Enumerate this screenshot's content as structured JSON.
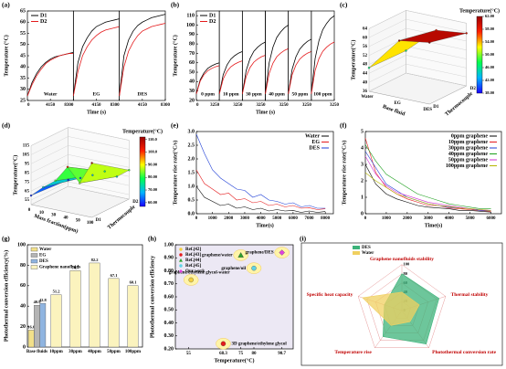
{
  "chart_data": [
    {
      "type": "line-panels",
      "label": "(a)",
      "xlabel": "Time (s)",
      "ylabel": "Temperature (°C)",
      "panels": [
        "Water",
        "EG",
        "DES"
      ],
      "x": [
        0,
        830,
        1660,
        2490,
        3320,
        4150,
        4980,
        5810,
        6640,
        7470,
        8300
      ],
      "xlim": [
        0,
        8300
      ],
      "xticks": [
        0,
        4150,
        8300
      ],
      "ylim": [
        25,
        65
      ],
      "yticks": [
        25,
        30,
        35,
        40,
        45,
        50,
        55,
        60,
        65
      ],
      "legend": "upper left",
      "series": [
        {
          "name": "D1",
          "color": "#000000",
          "values": [
            [
              27,
              33,
              37,
              40,
              42,
              43.5,
              44.5,
              45,
              45.5,
              46,
              46.5
            ],
            [
              27,
              42,
              49,
              53,
              56,
              58,
              59,
              60,
              60.5,
              61,
              61.5
            ],
            [
              27,
              45,
              52,
              56,
              58.5,
              60,
              61,
              62,
              62.5,
              63,
              63.5
            ]
          ]
        },
        {
          "name": "D2",
          "color": "#e41a1c",
          "values": [
            [
              27,
              32,
              36,
              39,
              41.5,
              43,
              44,
              45,
              45.5,
              46,
              46
            ],
            [
              27,
              38,
              45,
              49,
              52,
              54,
              55.5,
              56.5,
              57,
              57.5,
              58
            ],
            [
              27,
              40,
              47,
              51,
              54,
              56,
              57,
              58,
              58.5,
              59,
              59.5
            ]
          ]
        }
      ]
    },
    {
      "type": "line-panels",
      "label": "(b)",
      "xlabel": "Time (s)",
      "ylabel": "Temperature (°C)",
      "panels": [
        "0 ppm",
        "10 ppm",
        "30 ppm",
        "40 ppm",
        "50 ppm",
        "100 ppm"
      ],
      "x": [
        0,
        540,
        1080,
        1620,
        2160,
        2700,
        3250
      ],
      "xlim": [
        0,
        3250
      ],
      "xticks": [
        0,
        3250
      ],
      "ylim": [
        20,
        115
      ],
      "yticks": [
        20,
        30,
        40,
        50,
        60,
        70,
        80,
        90,
        100,
        110
      ],
      "legend": "upper left",
      "series": [
        {
          "name": "D1",
          "color": "#000000",
          "values": [
            [
              27,
              41.9,
              49.4,
              54.1,
              56.7,
              58.7,
              60
            ],
            [
              27,
              47.3,
              57.6,
              63.9,
              67.5,
              70.2,
              72
            ],
            [
              27,
              51.8,
              64.4,
              72.1,
              76.5,
              79.8,
              82
            ],
            [
              27,
              59.9,
              76.6,
              86.9,
              92.7,
              97.1,
              100
            ],
            [
              27,
              53.1,
              66.4,
              74.6,
              79.2,
              82.7,
              85
            ],
            [
              27,
              64.4,
              83.4,
              95.1,
              101.7,
              106.7,
              110
            ]
          ]
        },
        {
          "name": "D2",
          "color": "#e41a1c",
          "values": [
            [
              27,
              40.5,
              47.4,
              51.6,
              54,
              55.8,
              57
            ],
            [
              27,
              42.8,
              50.8,
              55.7,
              58.5,
              60.6,
              62
            ],
            [
              27,
              45.5,
              54.9,
              60.6,
              63.9,
              66.4,
              68
            ],
            [
              27,
              48.6,
              59.6,
              66.4,
              70.2,
              73.1,
              75
            ],
            [
              27,
              47.3,
              57.6,
              63.9,
              67.5,
              70.2,
              72
            ],
            [
              27,
              51.8,
              64.4,
              72.1,
              76.5,
              79.8,
              82
            ]
          ]
        }
      ]
    },
    {
      "type": "surface3d",
      "label": "(c)",
      "zlabel": "Temperature(°C)",
      "xlabel": "Base fluid",
      "ylabel": "Thermocouple",
      "x_categories": [
        "Water",
        "EG",
        "DES"
      ],
      "y_categories": [
        "D1",
        "D2"
      ],
      "values": [
        [
          46.5,
          46
        ],
        [
          61.5,
          58
        ],
        [
          63.5,
          59.5
        ]
      ],
      "zlim": [
        36,
        64
      ],
      "zticks": [
        36,
        40,
        44,
        48,
        52,
        56,
        60,
        64
      ],
      "colorbar_title": "Temperature(°C)",
      "clim": [
        38,
        62
      ],
      "cticks": [
        {
          "value": 38,
          "label": "38.00"
        },
        {
          "value": 42,
          "label": "42.00"
        },
        {
          "value": 46,
          "label": "46.00"
        },
        {
          "value": 50,
          "label": "50.00"
        },
        {
          "value": 54,
          "label": "54.00"
        },
        {
          "value": 58,
          "label": "58.00"
        },
        {
          "value": 62,
          "label": "62.00"
        }
      ],
      "colormap": [
        "#1a00ff",
        "#00b4ff",
        "#00ff50",
        "#ffff00",
        "#ff2000",
        "#9b0000"
      ]
    },
    {
      "type": "surface3d",
      "label": "(d)",
      "zlabel": "Temperature(°C)",
      "xlabel": "Mass fraction(ppm)",
      "ylabel": "Thermocouple",
      "x_categories": [
        "0",
        "10",
        "30",
        "40",
        "50",
        "100"
      ],
      "y_categories": [
        "D1",
        "D2"
      ],
      "values": [
        [
          60,
          57
        ],
        [
          72,
          62
        ],
        [
          82,
          68
        ],
        [
          100,
          75
        ],
        [
          85,
          72
        ],
        [
          110,
          82
        ]
      ],
      "zlim": [
        50,
        115
      ],
      "zticks": [
        55,
        65,
        75,
        85,
        95,
        105,
        115
      ],
      "colorbar_title": "Temperature(°C)",
      "clim": [
        57,
        112
      ],
      "cticks": [
        {
          "value": 60,
          "label": "60.00"
        },
        {
          "value": 70,
          "label": "70.00"
        },
        {
          "value": 80,
          "label": "80.00"
        },
        {
          "value": 90,
          "label": "90.00"
        },
        {
          "value": 100,
          "label": "100.0"
        },
        {
          "value": 110,
          "label": "110.0"
        }
      ],
      "colormap": [
        "#1a00ff",
        "#00b4ff",
        "#00ff50",
        "#ffff00",
        "#ff2000",
        "#9b0000"
      ]
    },
    {
      "type": "line",
      "label": "(e)",
      "xlabel": "Time(s)",
      "ylabel": "Temperature rise rate(°C/s)",
      "x": [
        0,
        500,
        1000,
        1500,
        2000,
        2500,
        3000,
        3500,
        4000,
        4500,
        5000,
        5500,
        6000,
        6500,
        7000,
        7500,
        8000
      ],
      "xlim": [
        0,
        8500
      ],
      "xticks": [
        0,
        1000,
        2000,
        3000,
        4000,
        5000,
        6000,
        7000,
        8000
      ],
      "ylim": [
        0,
        3
      ],
      "yticks": [
        {
          "value": 0,
          "label": "0.0"
        },
        {
          "value": 0.5,
          "label": "0.5"
        },
        {
          "value": 1,
          "label": "1.0"
        },
        {
          "value": 1.5,
          "label": "1.5"
        },
        {
          "value": 2,
          "label": "2.0"
        },
        {
          "value": 2.5,
          "label": "2.5"
        },
        {
          "value": 3,
          "label": "3.0"
        }
      ],
      "legend": "upper right",
      "series": [
        {
          "name": "Water",
          "color": "#000000",
          "values": [
            1.0,
            0.6,
            0.45,
            0.3,
            0.35,
            0.2,
            0.25,
            0.15,
            0.2,
            0.1,
            0.15,
            0.1,
            0.12,
            0.05,
            0.1,
            0.05,
            0.08
          ]
        },
        {
          "name": "EG",
          "color": "#e41a1c",
          "values": [
            1.6,
            1.1,
            0.9,
            0.7,
            0.75,
            0.5,
            0.55,
            0.4,
            0.45,
            0.3,
            0.35,
            0.25,
            0.3,
            0.2,
            0.22,
            0.15,
            0.18
          ]
        },
        {
          "name": "DES",
          "color": "#1f3fd6",
          "values": [
            2.9,
            2.2,
            1.6,
            1.3,
            1.1,
            0.9,
            0.85,
            0.6,
            0.7,
            0.5,
            0.45,
            0.35,
            0.4,
            0.25,
            0.3,
            0.2,
            0.2
          ]
        }
      ]
    },
    {
      "type": "line",
      "label": "(f)",
      "xlabel": "Time(s)",
      "ylabel": "Temperature rise rate(°C/s)",
      "x": [
        0,
        500,
        1000,
        1500,
        2000,
        2500,
        3000,
        3500,
        4000,
        4500,
        5000,
        5500,
        6000
      ],
      "xlim": [
        0,
        6500
      ],
      "xticks": [
        0,
        1000,
        2000,
        3000,
        4000,
        5000,
        6000
      ],
      "ylim": [
        0,
        5
      ],
      "yticks": [
        0,
        1,
        2,
        3,
        4,
        5
      ],
      "legend": "upper right",
      "series": [
        {
          "name": "0ppm graphene",
          "color": "#000000",
          "values": [
            3.0,
            1.8,
            1.2,
            0.9,
            0.7,
            0.5,
            0.4,
            0.35,
            0.3,
            0.2,
            0.2,
            0.15,
            0.1
          ]
        },
        {
          "name": "10ppm graphene",
          "color": "#e41a1c",
          "values": [
            4.6,
            2.5,
            1.6,
            1.2,
            0.9,
            0.7,
            0.5,
            0.5,
            0.35,
            0.3,
            0.25,
            0.2,
            0.15
          ]
        },
        {
          "name": "30ppm graphene",
          "color": "#1f3fd6",
          "values": [
            3.8,
            2.8,
            1.8,
            1.4,
            1.0,
            0.8,
            0.6,
            0.5,
            0.4,
            0.35,
            0.3,
            0.2,
            0.2
          ]
        },
        {
          "name": "40ppm graphene",
          "color": "#1a9e1a",
          "values": [
            4.2,
            3.2,
            2.4,
            2.0,
            1.6,
            1.2,
            1.0,
            0.8,
            0.6,
            0.5,
            0.4,
            0.3,
            0.3
          ]
        },
        {
          "name": "50ppm graphene",
          "color": "#d12fd1",
          "values": [
            3.5,
            2.4,
            1.7,
            1.3,
            1.1,
            0.9,
            0.7,
            0.6,
            0.5,
            0.4,
            0.3,
            0.25,
            0.2
          ]
        },
        {
          "name": "100ppm graphene",
          "color": "#b5b500",
          "values": [
            2.5,
            2.0,
            1.6,
            1.2,
            1.0,
            0.8,
            0.6,
            0.5,
            0.45,
            0.35,
            0.3,
            0.25,
            0.2
          ]
        }
      ]
    },
    {
      "type": "bar",
      "label": "(g)",
      "ylabel": "Photothermal conversion efficiency(%)",
      "categories": [
        "Base fluids",
        "10ppm",
        "30ppm",
        "40ppm",
        "50ppm",
        "100ppm"
      ],
      "ylim": [
        0,
        100
      ],
      "yticks": [
        0,
        20,
        40,
        60,
        80,
        100
      ],
      "legend": "upper left",
      "series": [
        {
          "name": "Water",
          "color": "#f2e08a",
          "values": [
            16.6,
            null,
            null,
            null,
            null,
            null
          ]
        },
        {
          "name": "EG",
          "color": "#b4b4b4",
          "values": [
            40.9,
            null,
            null,
            null,
            null,
            null
          ]
        },
        {
          "name": "DES",
          "color": "#8fb4e0",
          "values": [
            42.8,
            null,
            null,
            null,
            null,
            null
          ]
        },
        {
          "name": "Graphene nanofluids",
          "color": "#fbf3be",
          "values": [
            null,
            51.2,
            74.7,
            82.2,
            67.1,
            60.1
          ]
        }
      ]
    },
    {
      "type": "scatter",
      "label": "(h)",
      "xlabel": "Temperature(°C)",
      "ylabel": "Photothermal conversion efficiency",
      "xlim": [
        50,
        95
      ],
      "xticks": [
        55,
        68.3,
        75,
        80,
        90.7
      ],
      "ylim": [
        0.2,
        1.0
      ],
      "yticks": [
        {
          "value": 0.2,
          "label": "0.20"
        },
        {
          "value": 0.3,
          "label": "0.30"
        },
        {
          "value": 0.4,
          "label": "0.40"
        },
        {
          "value": 0.5,
          "label": "0.50"
        },
        {
          "value": 0.6,
          "label": "0.60"
        },
        {
          "value": 0.7,
          "label": "0.70"
        },
        {
          "value": 0.8,
          "label": "0.80"
        },
        {
          "value": 0.9,
          "label": "0.90"
        },
        {
          "value": 1.0,
          "label": "1.00"
        }
      ],
      "legend": "upper left",
      "series": [
        {
          "name": "Ref.[42]",
          "color": "#f4d03f",
          "marker": "circle",
          "x": [
            56
          ],
          "values": [
            0.73
          ],
          "annotation": "graphene/ethylene glycol-water"
        },
        {
          "name": "Ref.[43]",
          "color": "#e41a1c",
          "marker": "circle",
          "x": [
            68.3
          ],
          "values": [
            0.24
          ],
          "annotation": "3D graphene/ethylene glycol"
        },
        {
          "name": "Ref.[44]",
          "color": "#2ca02c",
          "marker": "triangle",
          "x": [
            75
          ],
          "values": [
            0.92
          ],
          "annotation": "graphene/water"
        },
        {
          "name": "Ref.[45]",
          "color": "#5fd3e6",
          "marker": "circle",
          "x": [
            80
          ],
          "values": [
            0.82
          ],
          "annotation": "graphene/oil"
        },
        {
          "name": "Our work",
          "color": "#e040e0",
          "marker": "diamond",
          "x": [
            90.7
          ],
          "values": [
            0.94
          ],
          "annotation": "graphene/DES"
        }
      ]
    },
    {
      "type": "radar",
      "label": "(i)",
      "axes": [
        "Graphene nanofluids stability",
        "Thermal stability",
        "Photothermal conversion rate",
        "Temperature rise",
        "Specific heat capacity"
      ],
      "rlim": [
        0,
        100
      ],
      "rticks": [
        0,
        20,
        40,
        60,
        80,
        100
      ],
      "legend": "upper left",
      "series": [
        {
          "name": "DES",
          "color": "#3cb37a",
          "values": [
            80,
            85,
            90,
            70,
            40
          ]
        },
        {
          "name": "Water",
          "color": "#f0d060",
          "values": [
            40,
            40,
            30,
            40,
            90
          ]
        }
      ]
    }
  ]
}
